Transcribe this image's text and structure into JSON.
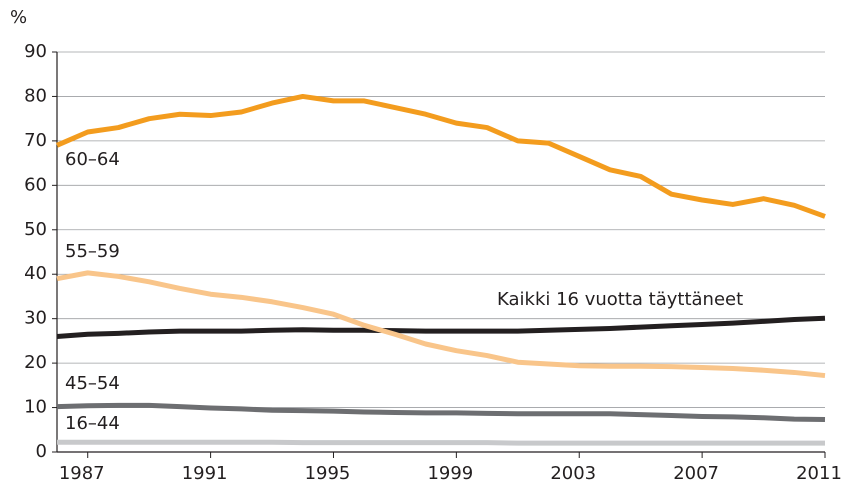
{
  "chart_data": {
    "type": "line",
    "ylabel": "%",
    "x": [
      1986,
      1987,
      1988,
      1989,
      1990,
      1991,
      1992,
      1993,
      1994,
      1995,
      1996,
      1997,
      1998,
      1999,
      2000,
      2001,
      2002,
      2003,
      2004,
      2005,
      2006,
      2007,
      2008,
      2009,
      2010,
      2011
    ],
    "xlim": [
      1986,
      2011
    ],
    "xticks": [
      1987,
      1991,
      1995,
      1999,
      2003,
      2007,
      2011
    ],
    "ylim": [
      0,
      90
    ],
    "yticks": [
      0,
      10,
      20,
      30,
      40,
      50,
      60,
      70,
      80,
      90
    ],
    "grid": true,
    "series": [
      {
        "name": "60–64",
        "color": "#f39c1e",
        "values": [
          69,
          72,
          73,
          75,
          76,
          75.7,
          76.5,
          78.5,
          80,
          79,
          79,
          77.5,
          76,
          74,
          73,
          70,
          69.5,
          66.5,
          63.5,
          62,
          58,
          56.7,
          55.7,
          57,
          55.5,
          53
        ]
      },
      {
        "name": "55–59",
        "color": "#f9c58a",
        "values": [
          39,
          40.3,
          39.5,
          38.3,
          36.8,
          35.5,
          34.8,
          33.8,
          32.5,
          31,
          28.5,
          26.5,
          24.3,
          22.8,
          21.7,
          20.2,
          19.8,
          19.4,
          19.3,
          19.3,
          19.2,
          19,
          18.8,
          18.4,
          17.9,
          17.2
        ]
      },
      {
        "name": "Kaikki 16 vuotta täyttäneet",
        "color": "#231f20",
        "values": [
          26,
          26.5,
          26.7,
          27,
          27.2,
          27.2,
          27.2,
          27.4,
          27.5,
          27.4,
          27.4,
          27.3,
          27.2,
          27.2,
          27.2,
          27.2,
          27.4,
          27.6,
          27.8,
          28.1,
          28.4,
          28.7,
          29,
          29.4,
          29.8,
          30.1
        ]
      },
      {
        "name": "45–54",
        "color": "#6d6e71",
        "values": [
          10.2,
          10.4,
          10.5,
          10.5,
          10.2,
          9.9,
          9.7,
          9.4,
          9.3,
          9.2,
          9,
          8.9,
          8.8,
          8.8,
          8.7,
          8.6,
          8.6,
          8.6,
          8.6,
          8.4,
          8.2,
          8,
          7.9,
          7.7,
          7.4,
          7.3
        ]
      },
      {
        "name": "16–44",
        "color": "#c8c9cb",
        "values": [
          2.2,
          2.2,
          2.2,
          2.2,
          2.2,
          2.2,
          2.2,
          2.2,
          2.1,
          2.1,
          2.1,
          2.1,
          2.1,
          2.1,
          2.1,
          2,
          2,
          2,
          2,
          2,
          2,
          2,
          2,
          2,
          2,
          2
        ]
      }
    ]
  }
}
